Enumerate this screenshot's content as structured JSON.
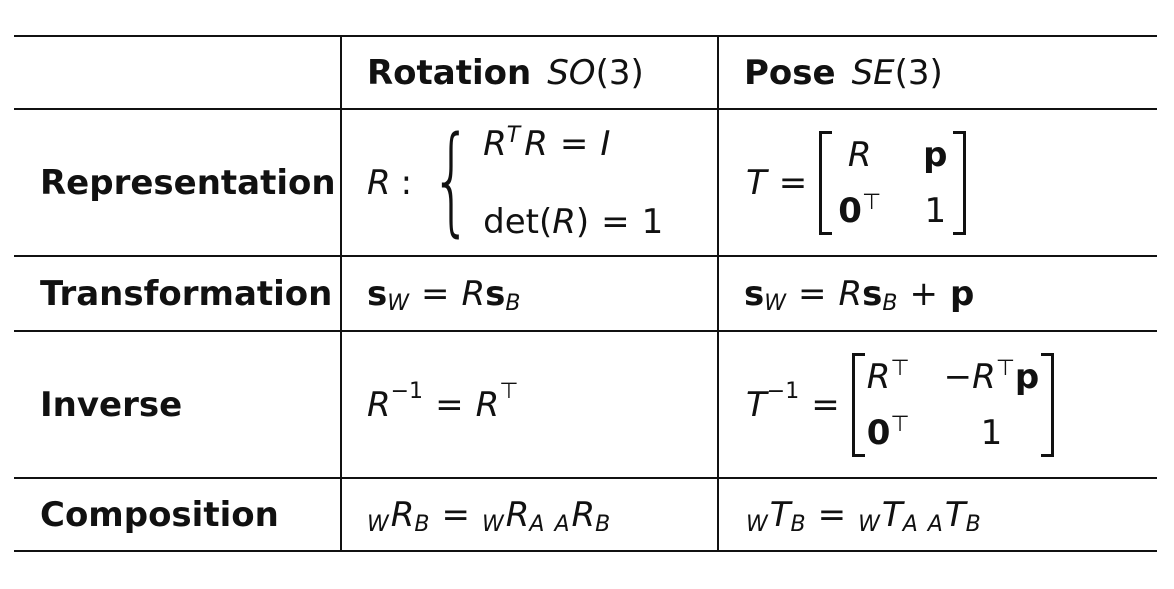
{
  "header": {
    "rotation_label": "Rotation",
    "rotation_group": "SO",
    "rotation_arg": "(3)",
    "pose_label": "Pose",
    "pose_group": "SE",
    "pose_arg": "(3)"
  },
  "rows": {
    "representation": {
      "label": "Representation",
      "rot_lhs": "R",
      "rot_colon": ":",
      "rot_case1_a": "R",
      "rot_case1_sup": "T",
      "rot_case1_b": "R",
      "rot_case1_eq": "=",
      "rot_case1_c": "I",
      "rot_case2_a": "det(",
      "rot_case2_b": "R",
      "rot_case2_c": ")",
      "rot_case2_eq": "=",
      "rot_case2_d": "1",
      "pose_lhs": "T",
      "pose_eq": "=",
      "m11": "R",
      "m12": "p",
      "m21": "0",
      "m21_sup": "⊤",
      "m22": "1"
    },
    "transformation": {
      "label": "Transformation",
      "rot_s": "s",
      "rot_s_sub": "W",
      "rot_eq": "=",
      "rot_R": "R",
      "rot_s2": "s",
      "rot_s2_sub": "B",
      "pose_s": "s",
      "pose_s_sub": "W",
      "pose_eq": "=",
      "pose_R": "R",
      "pose_s2": "s",
      "pose_s2_sub": "B",
      "pose_plus": "+",
      "pose_p": "p"
    },
    "inverse": {
      "label": "Inverse",
      "rot_R": "R",
      "rot_sup": "−1",
      "rot_eq": "=",
      "rot_R2": "R",
      "rot_sup2": "⊤",
      "pose_T": "T",
      "pose_sup": "−1",
      "pose_eq": "=",
      "m11": "R",
      "m11_sup": "⊤",
      "m12_minus": "−",
      "m12_R": "R",
      "m12_sup": "⊤",
      "m12_p": "p",
      "m21": "0",
      "m21_sup": "⊤",
      "m22": "1"
    },
    "composition": {
      "label": "Composition",
      "rot_pre1": "W",
      "rot_M1": "R",
      "rot_sub1": "B",
      "rot_eq": "=",
      "rot_pre2": "W",
      "rot_M2": "R",
      "rot_sub2": "A",
      "rot_pre3": "A",
      "rot_M3": "R",
      "rot_sub3": "B",
      "pose_pre1": "W",
      "pose_M1": "T",
      "pose_sub1": "B",
      "pose_eq": "=",
      "pose_pre2": "W",
      "pose_M2": "T",
      "pose_sub2": "A",
      "pose_pre3": "A",
      "pose_M3": "T",
      "pose_sub3": "B"
    }
  }
}
